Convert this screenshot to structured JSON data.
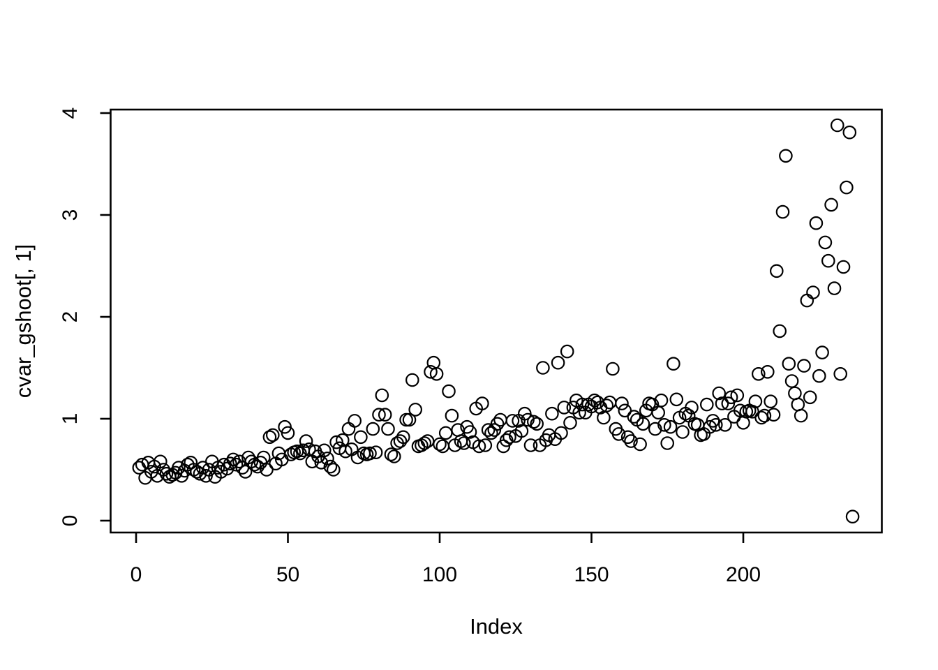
{
  "figure": {
    "background_color": "#ffffff",
    "foreground_color": "#000000"
  },
  "chart_data": {
    "type": "scatter",
    "title": "",
    "xlabel": "Index",
    "ylabel": "cvar_gshoot[, 1]",
    "marker": "open-circle",
    "marker_color": "#000000",
    "grid": false,
    "legend": null,
    "xlim": [
      -8.4,
      245.4
    ],
    "ylim": [
      -0.11,
      4.03
    ],
    "x_ticks": [
      0,
      50,
      100,
      150,
      200
    ],
    "y_ticks": [
      0,
      1,
      2,
      3,
      4
    ],
    "points": [
      [
        1,
        0.52
      ],
      [
        2,
        0.55
      ],
      [
        3,
        0.42
      ],
      [
        4,
        0.57
      ],
      [
        5,
        0.48
      ],
      [
        6,
        0.53
      ],
      [
        7,
        0.44
      ],
      [
        8,
        0.58
      ],
      [
        9,
        0.5
      ],
      [
        10,
        0.46
      ],
      [
        11,
        0.43
      ],
      [
        12,
        0.45
      ],
      [
        13,
        0.47
      ],
      [
        14,
        0.52
      ],
      [
        15,
        0.44
      ],
      [
        16,
        0.49
      ],
      [
        17,
        0.55
      ],
      [
        18,
        0.57
      ],
      [
        19,
        0.5
      ],
      [
        20,
        0.48
      ],
      [
        21,
        0.46
      ],
      [
        22,
        0.52
      ],
      [
        23,
        0.44
      ],
      [
        24,
        0.5
      ],
      [
        25,
        0.58
      ],
      [
        26,
        0.43
      ],
      [
        27,
        0.52
      ],
      [
        28,
        0.48
      ],
      [
        29,
        0.55
      ],
      [
        30,
        0.51
      ],
      [
        31,
        0.56
      ],
      [
        32,
        0.6
      ],
      [
        33,
        0.55
      ],
      [
        34,
        0.58
      ],
      [
        35,
        0.52
      ],
      [
        36,
        0.48
      ],
      [
        37,
        0.62
      ],
      [
        38,
        0.58
      ],
      [
        39,
        0.55
      ],
      [
        40,
        0.53
      ],
      [
        41,
        0.57
      ],
      [
        42,
        0.62
      ],
      [
        43,
        0.5
      ],
      [
        44,
        0.82
      ],
      [
        45,
        0.84
      ],
      [
        46,
        0.56
      ],
      [
        47,
        0.66
      ],
      [
        48,
        0.6
      ],
      [
        49,
        0.92
      ],
      [
        50,
        0.86
      ],
      [
        51,
        0.65
      ],
      [
        52,
        0.67
      ],
      [
        53,
        0.68
      ],
      [
        54,
        0.66
      ],
      [
        55,
        0.69
      ],
      [
        56,
        0.78
      ],
      [
        57,
        0.7
      ],
      [
        58,
        0.58
      ],
      [
        59,
        0.68
      ],
      [
        60,
        0.63
      ],
      [
        61,
        0.57
      ],
      [
        62,
        0.69
      ],
      [
        63,
        0.61
      ],
      [
        64,
        0.53
      ],
      [
        65,
        0.5
      ],
      [
        66,
        0.77
      ],
      [
        67,
        0.71
      ],
      [
        68,
        0.79
      ],
      [
        69,
        0.68
      ],
      [
        70,
        0.9
      ],
      [
        71,
        0.7
      ],
      [
        72,
        0.98
      ],
      [
        73,
        0.62
      ],
      [
        74,
        0.82
      ],
      [
        75,
        0.66
      ],
      [
        76,
        0.65
      ],
      [
        77,
        0.66
      ],
      [
        78,
        0.9
      ],
      [
        79,
        0.67
      ],
      [
        80,
        1.04
      ],
      [
        81,
        1.23
      ],
      [
        82,
        1.04
      ],
      [
        83,
        0.9
      ],
      [
        84,
        0.65
      ],
      [
        85,
        0.63
      ],
      [
        86,
        0.76
      ],
      [
        87,
        0.78
      ],
      [
        88,
        0.82
      ],
      [
        89,
        0.99
      ],
      [
        90,
        0.99
      ],
      [
        91,
        1.38
      ],
      [
        92,
        1.09
      ],
      [
        93,
        0.73
      ],
      [
        94,
        0.74
      ],
      [
        95,
        0.76
      ],
      [
        96,
        0.78
      ],
      [
        97,
        1.46
      ],
      [
        98,
        1.55
      ],
      [
        99,
        1.44
      ],
      [
        100,
        0.75
      ],
      [
        101,
        0.73
      ],
      [
        102,
        0.86
      ],
      [
        103,
        1.27
      ],
      [
        104,
        1.03
      ],
      [
        105,
        0.74
      ],
      [
        106,
        0.89
      ],
      [
        107,
        0.78
      ],
      [
        108,
        0.76
      ],
      [
        109,
        0.92
      ],
      [
        110,
        0.87
      ],
      [
        111,
        0.77
      ],
      [
        112,
        1.1
      ],
      [
        113,
        0.73
      ],
      [
        114,
        1.15
      ],
      [
        115,
        0.74
      ],
      [
        116,
        0.89
      ],
      [
        117,
        0.86
      ],
      [
        118,
        0.89
      ],
      [
        119,
        0.95
      ],
      [
        120,
        0.99
      ],
      [
        121,
        0.73
      ],
      [
        122,
        0.79
      ],
      [
        123,
        0.82
      ],
      [
        124,
        0.98
      ],
      [
        125,
        0.83
      ],
      [
        126,
        0.98
      ],
      [
        127,
        0.88
      ],
      [
        128,
        1.05
      ],
      [
        129,
        0.99
      ],
      [
        130,
        0.74
      ],
      [
        131,
        0.97
      ],
      [
        132,
        0.95
      ],
      [
        133,
        0.74
      ],
      [
        134,
        1.5
      ],
      [
        135,
        0.79
      ],
      [
        136,
        0.84
      ],
      [
        137,
        1.05
      ],
      [
        138,
        0.8
      ],
      [
        139,
        1.55
      ],
      [
        140,
        0.86
      ],
      [
        141,
        1.11
      ],
      [
        142,
        1.66
      ],
      [
        143,
        0.96
      ],
      [
        144,
        1.11
      ],
      [
        145,
        1.18
      ],
      [
        146,
        1.06
      ],
      [
        147,
        1.14
      ],
      [
        148,
        1.06
      ],
      [
        149,
        1.14
      ],
      [
        150,
        1.12
      ],
      [
        151,
        1.18
      ],
      [
        152,
        1.16
      ],
      [
        153,
        1.11
      ],
      [
        154,
        1.01
      ],
      [
        155,
        1.13
      ],
      [
        156,
        1.16
      ],
      [
        157,
        1.49
      ],
      [
        158,
        0.9
      ],
      [
        159,
        0.85
      ],
      [
        160,
        1.15
      ],
      [
        161,
        1.08
      ],
      [
        162,
        0.82
      ],
      [
        163,
        0.78
      ],
      [
        164,
        1.02
      ],
      [
        165,
        0.99
      ],
      [
        166,
        0.75
      ],
      [
        167,
        0.95
      ],
      [
        168,
        1.08
      ],
      [
        169,
        1.15
      ],
      [
        170,
        1.14
      ],
      [
        171,
        0.9
      ],
      [
        172,
        1.06
      ],
      [
        173,
        1.18
      ],
      [
        174,
        0.94
      ],
      [
        175,
        0.76
      ],
      [
        176,
        0.92
      ],
      [
        177,
        1.54
      ],
      [
        178,
        1.19
      ],
      [
        179,
        1.01
      ],
      [
        180,
        0.87
      ],
      [
        181,
        1.05
      ],
      [
        182,
        1.03
      ],
      [
        183,
        1.11
      ],
      [
        184,
        0.95
      ],
      [
        185,
        0.94
      ],
      [
        186,
        0.84
      ],
      [
        187,
        0.85
      ],
      [
        188,
        1.14
      ],
      [
        189,
        0.92
      ],
      [
        190,
        0.98
      ],
      [
        191,
        0.94
      ],
      [
        192,
        1.25
      ],
      [
        193,
        1.15
      ],
      [
        194,
        0.94
      ],
      [
        195,
        1.15
      ],
      [
        196,
        1.21
      ],
      [
        197,
        1.02
      ],
      [
        198,
        1.23
      ],
      [
        199,
        1.08
      ],
      [
        200,
        0.96
      ],
      [
        201,
        1.07
      ],
      [
        202,
        1.08
      ],
      [
        203,
        1.07
      ],
      [
        204,
        1.17
      ],
      [
        205,
        1.44
      ],
      [
        206,
        1.01
      ],
      [
        207,
        1.03
      ],
      [
        208,
        1.46
      ],
      [
        209,
        1.17
      ],
      [
        210,
        1.04
      ],
      [
        211,
        2.45
      ],
      [
        212,
        1.86
      ],
      [
        213,
        3.03
      ],
      [
        214,
        3.58
      ],
      [
        215,
        1.54
      ],
      [
        216,
        1.37
      ],
      [
        217,
        1.25
      ],
      [
        218,
        1.14
      ],
      [
        219,
        1.03
      ],
      [
        220,
        1.52
      ],
      [
        221,
        2.16
      ],
      [
        222,
        1.21
      ],
      [
        223,
        2.24
      ],
      [
        224,
        2.92
      ],
      [
        225,
        1.42
      ],
      [
        226,
        1.65
      ],
      [
        227,
        2.73
      ],
      [
        228,
        2.55
      ],
      [
        229,
        3.1
      ],
      [
        230,
        2.28
      ],
      [
        231,
        3.88
      ],
      [
        232,
        1.44
      ],
      [
        233,
        2.49
      ],
      [
        234,
        3.27
      ],
      [
        235,
        3.81
      ],
      [
        236,
        0.04
      ]
    ]
  }
}
